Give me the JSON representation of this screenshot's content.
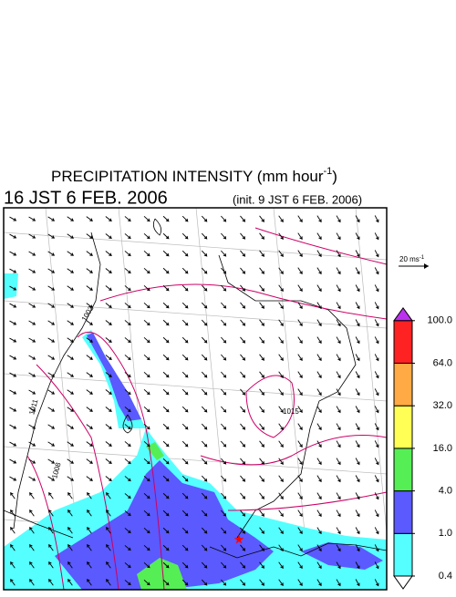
{
  "title": {
    "text": "PRECIPITATION INTENSITY (mm hour",
    "superscript": "-1",
    "close": ")"
  },
  "valid_time": "16 JST 6 FEB. 2006",
  "init_time": "(init. 9 JST 6 FEB. 2006)",
  "reference_vector": {
    "text": "20 ms",
    "superscript": "-1"
  },
  "contour_labels": [
    "1002",
    "1015",
    "1011",
    "1008"
  ],
  "colorbar": {
    "levels": [
      {
        "value": 0.4,
        "label": "0.4"
      },
      {
        "value": 1,
        "label": "1.0"
      },
      {
        "value": 4,
        "label": "4.0"
      },
      {
        "value": 16,
        "label": "16.0"
      },
      {
        "value": 32,
        "label": "32.0"
      },
      {
        "value": 64,
        "label": "64.0"
      },
      {
        "value": 100,
        "label": "100.0"
      }
    ],
    "colors": [
      "#ffffff",
      "#55ffff",
      "#5a5aff",
      "#55ee55",
      "#ffff55",
      "#ffaa44",
      "#ff2222",
      "#bb33ee"
    ]
  }
}
